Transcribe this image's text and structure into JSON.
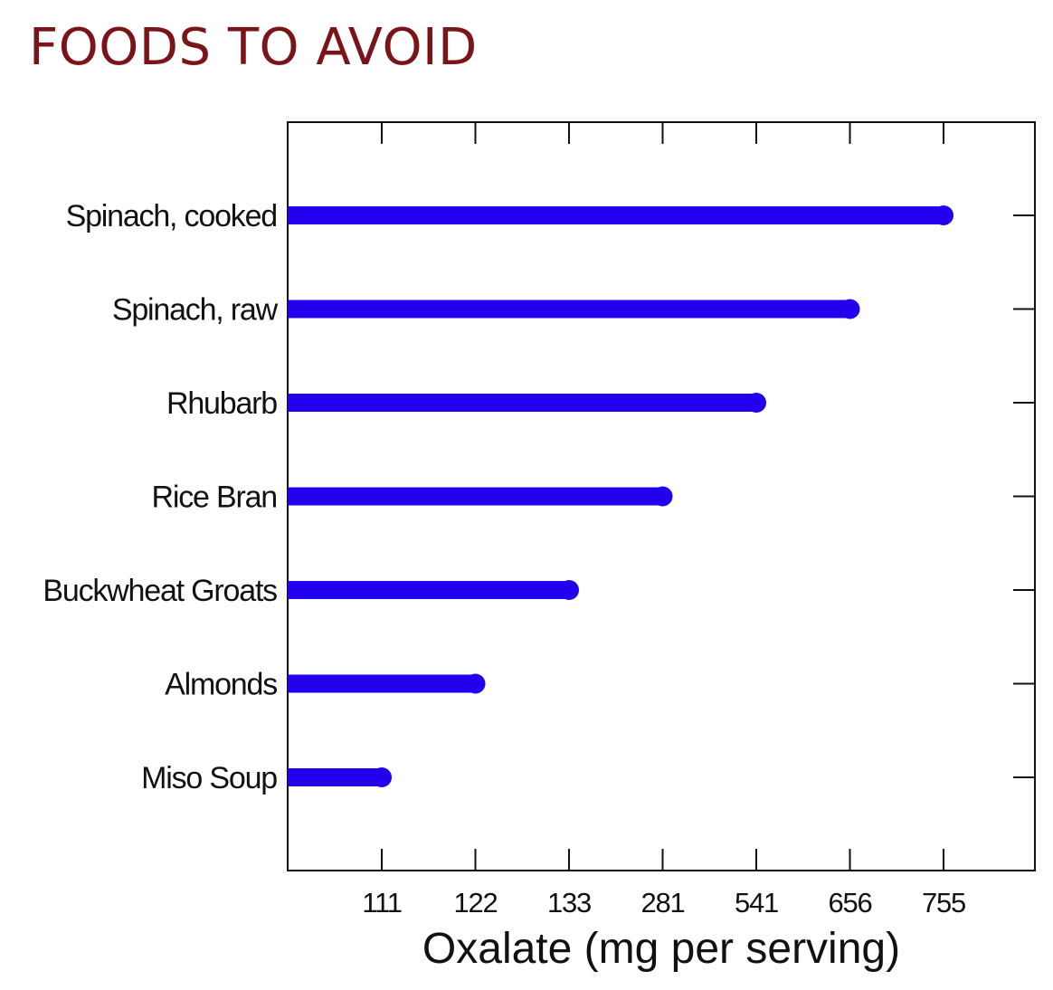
{
  "page": {
    "heading": "FOODS TO AVOID",
    "heading_color": "#7a1418"
  },
  "chart_data": {
    "type": "bar",
    "orientation": "horizontal",
    "categories": [
      "Spinach, cooked",
      "Spinach, raw",
      "Rhubarb",
      "Rice Bran",
      "Buckwheat Groats",
      "Almonds",
      "Miso Soup"
    ],
    "values": [
      755,
      656,
      541,
      281,
      133,
      122,
      111
    ],
    "x_tick_labels": [
      "111",
      "122",
      "133",
      "281",
      "541",
      "656",
      "755"
    ],
    "xlabel": "Oxalate (mg per serving)",
    "bar_color": "#2200ee",
    "grid": false
  }
}
